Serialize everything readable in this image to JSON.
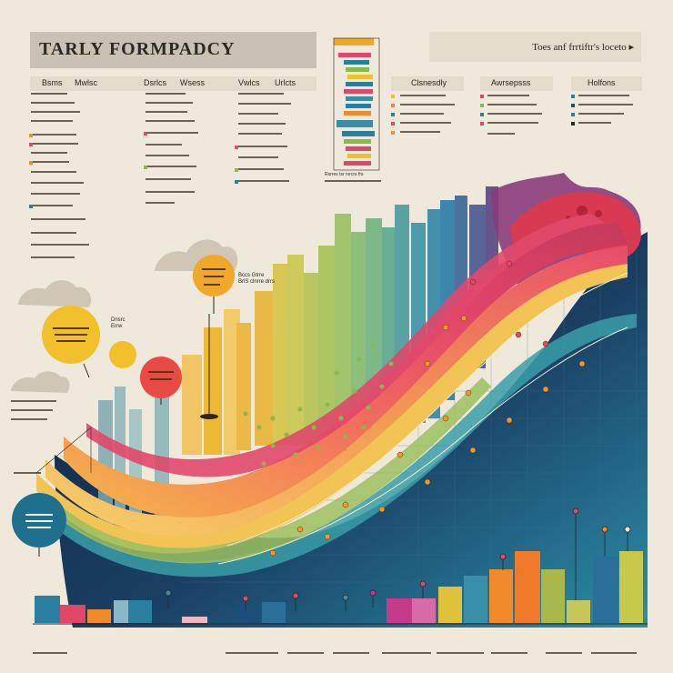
{
  "title": "TARLY FORMPADCY",
  "top_right_label": "Toes anf frrtiftr's loceto ▸",
  "left_headers": [
    "Bsms",
    "Mwlsc",
    "Dsrlcs",
    "Wsess",
    "Vwlcs",
    "Urlcts"
  ],
  "right_headers": [
    "Clsnesdly",
    "Awrsepsss",
    "Holfons"
  ],
  "callouts": {
    "callout_1": "Bccs Gtrre\nBrlS clnrre drrs",
    "callout_2": "Dnsrc\nErrw",
    "small_tower_caption": "Rsrres tsr rvrcrs frs"
  },
  "colors": {
    "background": "#efe9dc",
    "navy": "#1a2f52",
    "teal": "#2a7fa0",
    "pink": "#e0486a",
    "orange": "#f08a2a",
    "yellow": "#f0b42a",
    "green": "#8aa83a",
    "purple": "#6b3f82"
  }
}
